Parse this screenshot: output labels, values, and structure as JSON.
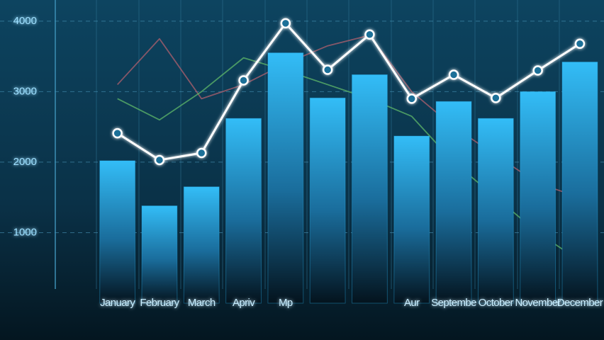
{
  "chart_data": {
    "type": "bar",
    "categories": [
      "January",
      "February",
      "March",
      "Apriv",
      "Mp",
      null,
      null,
      "Aur",
      "Septembe",
      "October",
      "November",
      "December"
    ],
    "values": [
      2020,
      1380,
      1650,
      2620,
      3550,
      2910,
      3240,
      2370,
      2860,
      2620,
      3000,
      3420
    ],
    "color": "#2fb8f5",
    "lines": [
      {
        "color": "#ffffff",
        "values": [
          2410,
          2030,
          2130,
          3160,
          3970,
          3310,
          3810,
          2900,
          3240,
          2910,
          3300,
          3680
        ]
      },
      {
        "color": "#b0606e",
        "values": [
          3100,
          3750,
          2900,
          3100,
          3400,
          3650,
          3800,
          3000,
          2500,
          2100,
          1700,
          1500
        ]
      },
      {
        "color": "#5fb86a",
        "values": [
          2900,
          2600,
          3000,
          3480,
          3300,
          3100,
          2900,
          2650,
          2000,
          1500,
          1000,
          600
        ]
      }
    ],
    "ylim": [
      0,
      4300
    ],
    "yticks": [
      1000,
      2000,
      3000,
      4000
    ],
    "grid": true
  }
}
